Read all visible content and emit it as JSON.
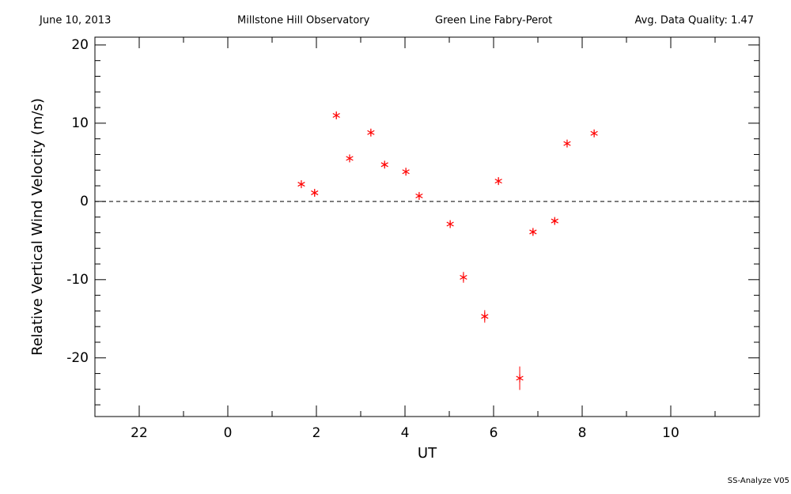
{
  "chart_data": {
    "type": "scatter",
    "header": [
      "June 10, 2013",
      "Millstone Hill Observatory",
      "Green Line Fabry-Perot",
      "Avg. Data Quality: 1.47"
    ],
    "footer": "SS-Analyze V05",
    "xlabel": "UT",
    "ylabel": "Relative Vertical Wind Velocity (m/s)",
    "x": [
      1.66,
      1.96,
      2.45,
      2.75,
      3.23,
      3.54,
      4.02,
      4.32,
      5.02,
      5.32,
      5.8,
      6.11,
      6.59,
      6.89,
      7.38,
      7.66,
      8.27
    ],
    "series": [
      {
        "color": "#ff0000",
        "values": [
          2.2,
          1.1,
          11.0,
          5.5,
          8.8,
          4.7,
          3.8,
          0.7,
          -2.9,
          -9.7,
          -14.7,
          2.6,
          -22.6,
          -3.9,
          -2.5,
          7.4,
          8.7
        ],
        "errors": [
          0.4,
          0.4,
          0.4,
          0.4,
          0.4,
          0.4,
          0.4,
          0.4,
          0.4,
          0.7,
          0.8,
          0.4,
          1.5,
          0.4,
          0.4,
          0.4,
          0.4
        ]
      }
    ],
    "xlim": [
      -3,
      12
    ],
    "xticks": [
      {
        "value": -2,
        "label": "22"
      },
      0,
      2,
      4,
      6,
      8,
      10
    ],
    "xminor_ticks": [
      -3,
      -1,
      1,
      3,
      5,
      7,
      9,
      11
    ],
    "ylim": [
      -27.5,
      21
    ],
    "yticks": [
      -20,
      -10,
      0,
      10,
      20
    ],
    "yminor_ticks": [
      -26,
      -24,
      -22,
      -18,
      -16,
      -14,
      -12,
      -8,
      -6,
      -4,
      -2,
      2,
      4,
      6,
      8,
      12,
      14,
      16,
      18
    ],
    "reference_line": 0
  }
}
